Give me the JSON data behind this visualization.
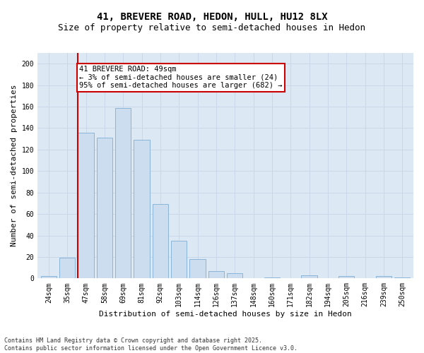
{
  "title_line1": "41, BREVERE ROAD, HEDON, HULL, HU12 8LX",
  "title_line2": "Size of property relative to semi-detached houses in Hedon",
  "xlabel": "Distribution of semi-detached houses by size in Hedon",
  "ylabel": "Number of semi-detached properties",
  "categories": [
    "24sqm",
    "35sqm",
    "47sqm",
    "58sqm",
    "69sqm",
    "81sqm",
    "92sqm",
    "103sqm",
    "114sqm",
    "126sqm",
    "137sqm",
    "148sqm",
    "160sqm",
    "171sqm",
    "182sqm",
    "194sqm",
    "205sqm",
    "216sqm",
    "239sqm",
    "250sqm"
  ],
  "values": [
    2,
    19,
    136,
    131,
    159,
    129,
    69,
    35,
    18,
    7,
    5,
    0,
    1,
    0,
    3,
    0,
    2,
    0,
    2,
    1
  ],
  "bar_color": "#ccddf0",
  "bar_edge_color": "#8ab4d8",
  "annotation_text_line1": "41 BREVERE ROAD: 49sqm",
  "annotation_text_line2": "← 3% of semi-detached houses are smaller (24)",
  "annotation_text_line3": "95% of semi-detached houses are larger (682) →",
  "annotation_box_color": "#ffffff",
  "annotation_box_edge": "#cc0000",
  "red_line_color": "#cc0000",
  "ylim": [
    0,
    210
  ],
  "yticks": [
    0,
    20,
    40,
    60,
    80,
    100,
    120,
    140,
    160,
    180,
    200
  ],
  "grid_color": "#c8d8e8",
  "background_color": "#dce8f4",
  "footer_line1": "Contains HM Land Registry data © Crown copyright and database right 2025.",
  "footer_line2": "Contains public sector information licensed under the Open Government Licence v3.0.",
  "title_fontsize": 10,
  "subtitle_fontsize": 9,
  "axis_label_fontsize": 8,
  "tick_fontsize": 7,
  "footer_fontsize": 6,
  "annotation_fontsize": 7.5
}
